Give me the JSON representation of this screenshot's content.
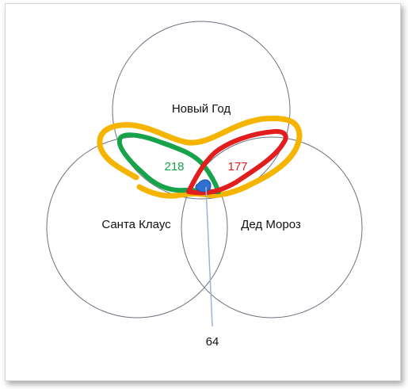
{
  "diagram": {
    "sets": [
      {
        "id": "new-year",
        "label": "Новый Год"
      },
      {
        "id": "santa-claus",
        "label": "Санта Клаус"
      },
      {
        "id": "ded-moroz",
        "label": "Дед Мороз"
      }
    ],
    "annotations": [
      {
        "id": "santa-and-new-year",
        "label": "218",
        "color": "#16a34a"
      },
      {
        "id": "moroz-and-new-year",
        "label": "177",
        "color": "#e11d1d"
      },
      {
        "id": "all-three",
        "label": "64",
        "color": "#111111"
      }
    ],
    "colors": {
      "circle_stroke": "#6b7280",
      "orange_outline": "#f5b400",
      "green_outline": "#16a34a",
      "red_outline": "#e11d1d",
      "center_mark": "#2f6fd1",
      "pointer_line": "#9fb3d6"
    }
  }
}
